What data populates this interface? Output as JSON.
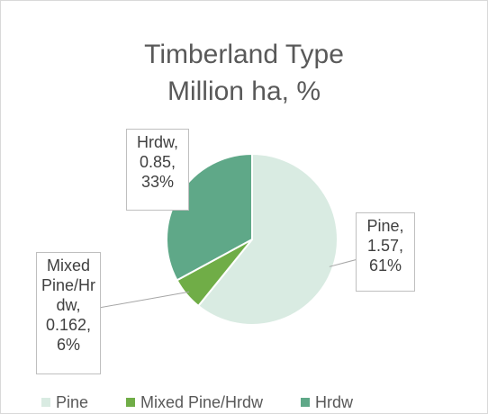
{
  "chart_data": {
    "type": "pie",
    "title": "Timberland Type",
    "subtitle": "Million ha, %",
    "categories": [
      "Pine",
      "Mixed Pine/Hrdw",
      "Hrdw"
    ],
    "values": [
      1.57,
      0.162,
      0.85
    ],
    "value_labels": [
      "Pine, 1.57, 61%",
      "Mixed Pine/Hrdw, 0.162, 6%",
      "Hrdw, 0.85, 33%"
    ],
    "colors": [
      "#d9ebe2",
      "#70ad47",
      "#5fa888"
    ],
    "legend": "bottom"
  }
}
